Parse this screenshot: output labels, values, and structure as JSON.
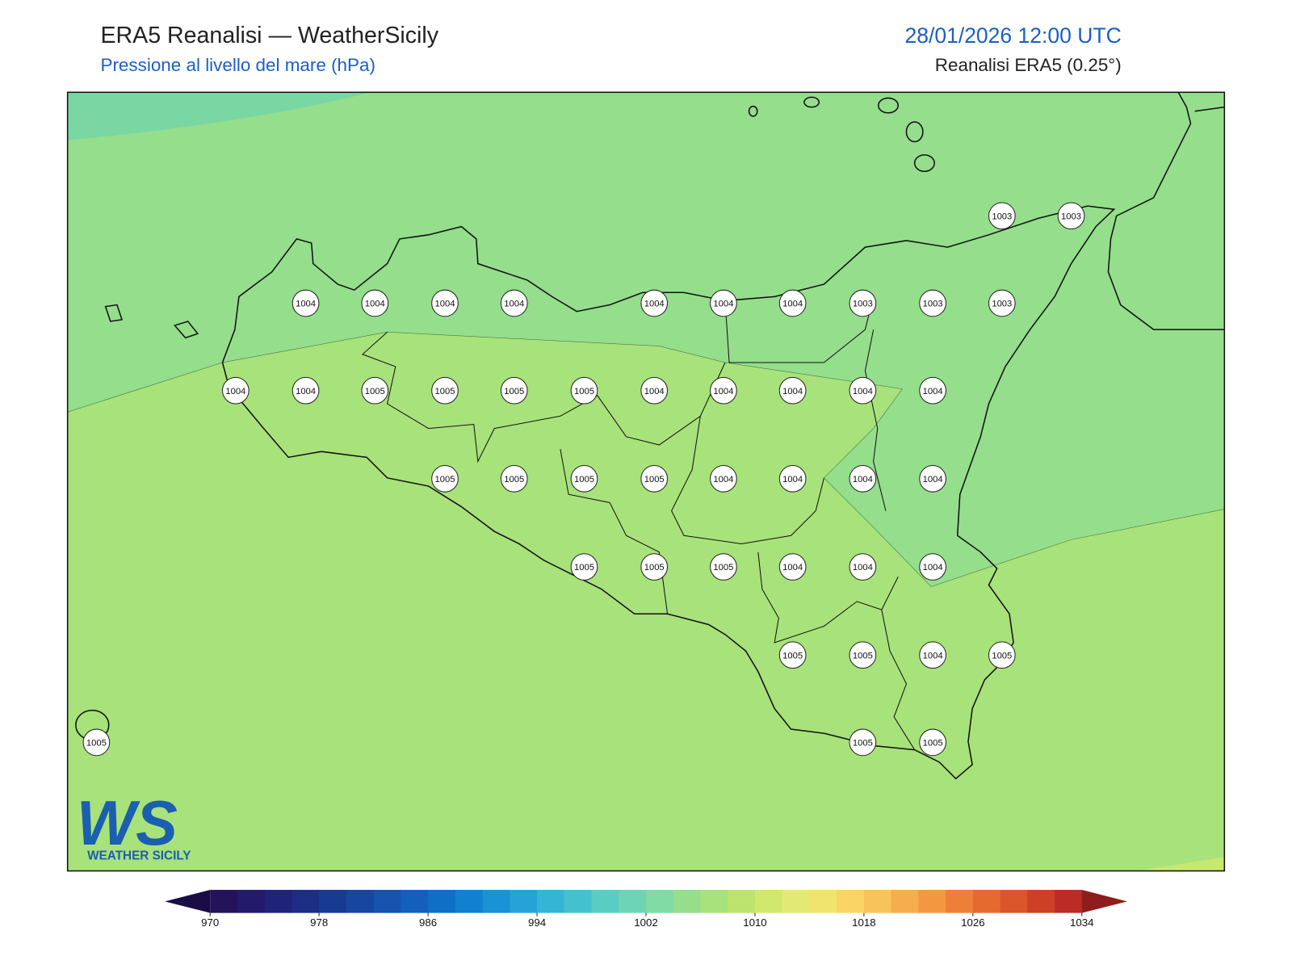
{
  "header": {
    "title": "ERA5 Reanalisi — WeatherSicily",
    "subtitle": "Pressione al livello del mare (hPa)",
    "datetime": "28/01/2026 12:00 UTC",
    "source": "Reanalisi ERA5 (0.25°)"
  },
  "stations": [
    1003,
    1003,
    1004,
    1004,
    1004,
    1004,
    1004,
    1004,
    1004,
    1003,
    1003,
    1003,
    1004,
    1004,
    1005,
    1005,
    1005,
    1005,
    1004,
    1004,
    1004,
    1004,
    1004,
    1005,
    1005,
    1005,
    1005,
    1004,
    1004,
    1004,
    1004,
    1005,
    1005,
    1005,
    1004,
    1004,
    1004,
    1005,
    1005,
    1004,
    1005,
    1005,
    1005,
    1005
  ],
  "logo": {
    "mark": "WS",
    "name": "WEATHER SICILY"
  },
  "colorbar": {
    "range": [
      970,
      1034
    ],
    "ticks": [
      970,
      978,
      986,
      994,
      1002,
      1010,
      1018,
      1026,
      1034
    ],
    "colors": [
      "#24135a",
      "#231a6b",
      "#1f237a",
      "#1b2d85",
      "#173a93",
      "#1646a0",
      "#1553ae",
      "#1260bb",
      "#0f6fc6",
      "#1181cf",
      "#1a92d5",
      "#25a3d9",
      "#34b5d6",
      "#45c1cd",
      "#5acdc3",
      "#6dd5b5",
      "#80daa4",
      "#94de8c",
      "#a8e27a",
      "#bde46c",
      "#d2e86c",
      "#e2ea75",
      "#f1e46e",
      "#fad566",
      "#f8c35a",
      "#f5ad4e",
      "#f29843",
      "#ed8038",
      "#e56a30",
      "#da5529",
      "#cc4027",
      "#bb2c26"
    ],
    "under_color": "#1a0c44",
    "over_color": "#8f1d1d"
  }
}
